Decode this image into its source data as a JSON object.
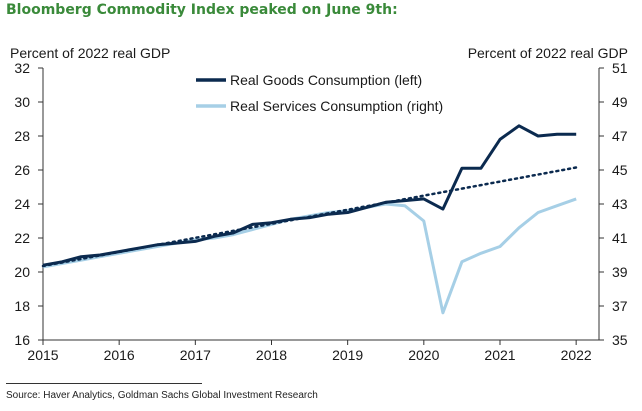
{
  "title": "Bloomberg Commodity Index peaked on June 9th:",
  "title_color": "#3a8a3a",
  "source": "Source: Haver Analytics, Goldman Sachs Global Investment Research",
  "chart_data": {
    "type": "line",
    "left_axis_label": "Percent of 2022 real GDP",
    "right_axis_label": "Percent of 2022 real GDP",
    "xlim": [
      2015,
      2022.3
    ],
    "x_ticks": [
      2015,
      2016,
      2017,
      2018,
      2019,
      2020,
      2021,
      2022
    ],
    "ylim_left": [
      16,
      32
    ],
    "y_ticks_left": [
      16,
      18,
      20,
      22,
      24,
      26,
      28,
      30,
      32
    ],
    "ylim_right": [
      35,
      51
    ],
    "y_ticks_right": [
      35,
      37,
      39,
      41,
      43,
      45,
      47,
      49,
      51
    ],
    "series": [
      {
        "name": "Real Goods Consumption (left)",
        "axis": "left",
        "color": "#0b2a4f",
        "style": "solid",
        "x": [
          2015.0,
          2015.25,
          2015.5,
          2015.75,
          2016.0,
          2016.25,
          2016.5,
          2016.75,
          2017.0,
          2017.25,
          2017.5,
          2017.75,
          2018.0,
          2018.25,
          2018.5,
          2018.75,
          2019.0,
          2019.25,
          2019.5,
          2019.75,
          2020.0,
          2020.25,
          2020.5,
          2020.75,
          2021.0,
          2021.25,
          2021.5,
          2021.75,
          2022.0
        ],
        "values": [
          20.4,
          20.6,
          20.9,
          21.0,
          21.2,
          21.4,
          21.6,
          21.7,
          21.8,
          22.1,
          22.3,
          22.8,
          22.9,
          23.1,
          23.2,
          23.4,
          23.5,
          23.8,
          24.1,
          24.2,
          24.3,
          23.7,
          26.1,
          26.1,
          27.8,
          28.6,
          28.0,
          28.1,
          28.1
        ]
      },
      {
        "name": "Real Services Consumption (right)",
        "axis": "right",
        "color": "#a6cfe6",
        "style": "solid",
        "x": [
          2015.0,
          2015.25,
          2015.5,
          2015.75,
          2016.0,
          2016.25,
          2016.5,
          2016.75,
          2017.0,
          2017.25,
          2017.5,
          2017.75,
          2018.0,
          2018.25,
          2018.5,
          2018.75,
          2019.0,
          2019.25,
          2019.5,
          2019.75,
          2020.0,
          2020.25,
          2020.5,
          2020.75,
          2021.0,
          2021.25,
          2021.5,
          2021.75,
          2022.0
        ],
        "values": [
          39.3,
          39.5,
          39.7,
          39.9,
          40.1,
          40.3,
          40.5,
          40.7,
          40.9,
          41.0,
          41.2,
          41.5,
          41.8,
          42.1,
          42.3,
          42.5,
          42.6,
          42.8,
          43.0,
          42.9,
          42.0,
          36.6,
          39.6,
          40.1,
          40.5,
          41.6,
          42.5,
          42.9,
          43.3
        ]
      },
      {
        "name": "Trend",
        "axis": "left",
        "color": "#0b2a4f",
        "style": "dotted",
        "x": [
          2015.0,
          2022.0
        ],
        "values": [
          20.35,
          26.15
        ]
      }
    ],
    "legend": [
      "Real Goods Consumption (left)",
      "Real Services Consumption (right)"
    ],
    "legend_position": "top-center"
  }
}
